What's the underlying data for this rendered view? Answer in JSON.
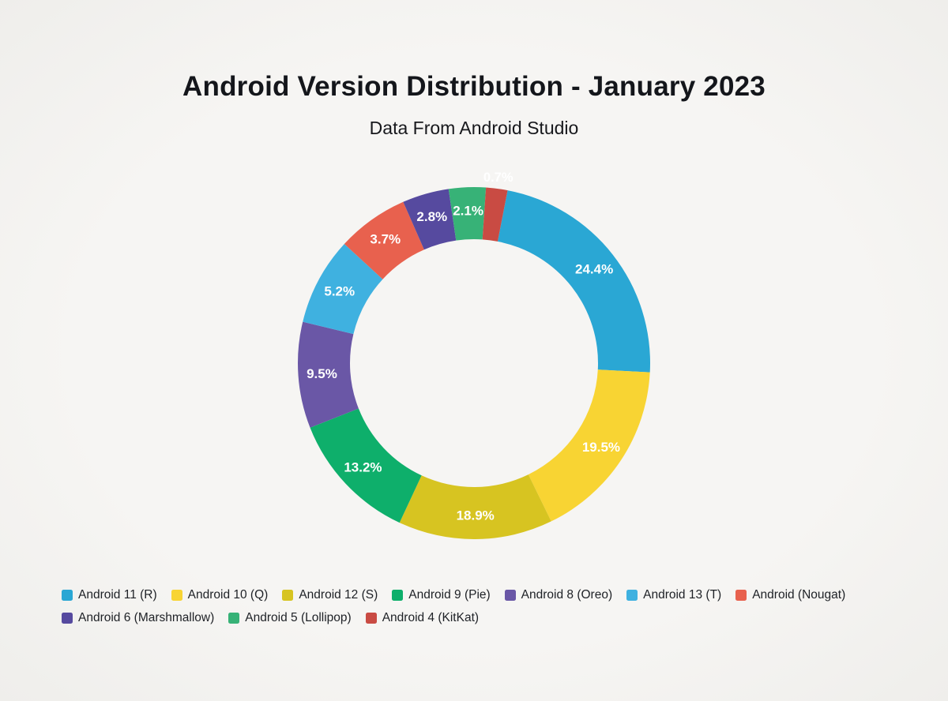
{
  "page": {
    "background_color": "#F5F4F2"
  },
  "chart_data": {
    "type": "pie",
    "subtype": "donut",
    "title": "Android Version Distribution - January 2023",
    "subtitle": "Data From Android Studio",
    "unit": "%",
    "legend_position": "bottom",
    "outer_radius": 223,
    "inner_radius": 157,
    "inside_label_radius": 193,
    "outside_label_radius": 237,
    "categories": [
      "Android 11 (R)",
      "Android 10 (Q)",
      "Android 12 (S)",
      "Android 9 (Pie)",
      "Android 8 (Oreo)",
      "Android 13 (T)",
      "Android (Nougat)",
      "Android 6 (Marshmallow)",
      "Android 5 (Lollipop)",
      "Android 4 (KitKat)"
    ],
    "values": [
      24.4,
      19.5,
      18.9,
      13.2,
      9.5,
      5.2,
      3.7,
      2.8,
      2.1,
      0.7
    ],
    "slices": [
      {
        "label": "Android 11 (R)",
        "value": 24.4,
        "display_label": "24.4%",
        "color": "#2AA7D4",
        "start_deg": 11,
        "end_deg": 93,
        "label_outside": false
      },
      {
        "label": "Android 10 (Q)",
        "value": 19.5,
        "display_label": "19.5%",
        "color": "#F8D433",
        "start_deg": 93,
        "end_deg": 154,
        "label_outside": false
      },
      {
        "label": "Android 12 (S)",
        "value": 18.9,
        "display_label": "18.9%",
        "color": "#D7C421",
        "start_deg": 154,
        "end_deg": 205,
        "label_outside": false
      },
      {
        "label": "Android 9 (Pie)",
        "value": 13.2,
        "display_label": "13.2%",
        "color": "#0EAF6B",
        "start_deg": 205,
        "end_deg": 248.5,
        "label_outside": false
      },
      {
        "label": "Android 8 (Oreo)",
        "value": 9.5,
        "display_label": "9.5%",
        "color": "#6A57A6",
        "start_deg": 248.5,
        "end_deg": 283.6,
        "label_outside": false
      },
      {
        "label": "Android 13 (T)",
        "value": 5.2,
        "display_label": "5.2%",
        "color": "#3FB1E0",
        "start_deg": 283.6,
        "end_deg": 312.6,
        "label_outside": false
      },
      {
        "label": "Android (Nougat)",
        "value": 3.7,
        "display_label": "3.7%",
        "color": "#E8614E",
        "start_deg": 312.6,
        "end_deg": 336.3,
        "label_outside": false
      },
      {
        "label": "Android 6 (Marshmallow)",
        "value": 2.8,
        "display_label": "2.8%",
        "color": "#564A9F",
        "start_deg": 336.3,
        "end_deg": 351.7,
        "label_outside": false
      },
      {
        "label": "Android 5 (Lollipop)",
        "value": 2.1,
        "display_label": "2.1%",
        "color": "#37B277",
        "start_deg": 351.7,
        "end_deg": 363.9,
        "label_outside": false
      },
      {
        "label": "Android 4 (KitKat)",
        "value": 0.7,
        "display_label": "0.7%",
        "color": "#C94B43",
        "start_deg": 363.9,
        "end_deg": 371,
        "label_outside": true
      }
    ]
  }
}
